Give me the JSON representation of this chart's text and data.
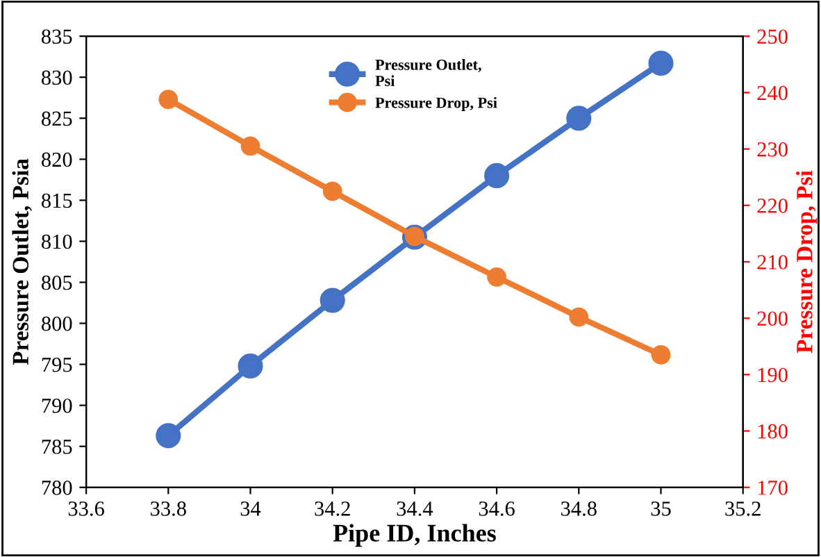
{
  "chart_data": {
    "type": "line",
    "xlabel": "Pipe ID, Inches",
    "ylabel": "Pressure Outlet, Psia",
    "y2label": "Pressure Drop, Psi",
    "x": [
      33.8,
      34,
      34.2,
      34.4,
      34.6,
      34.8,
      35
    ],
    "series": [
      {
        "name": "Pressure Outlet,\nPsi",
        "color": "#4472c4",
        "values": [
          786.3,
          794.8,
          802.8,
          810.5,
          818,
          825,
          831.7
        ]
      },
      {
        "name": "Pressure Drop, Psi",
        "color": "#ed7d31",
        "axis": "y2",
        "values": [
          238.8,
          230.5,
          222.5,
          214.5,
          207.3,
          200.2,
          193.5
        ]
      }
    ],
    "xlim": [
      33.6,
      35.2
    ],
    "xticks": [
      33.6,
      33.8,
      34,
      34.2,
      34.4,
      34.6,
      34.8,
      35,
      35.2
    ],
    "ylim": [
      780,
      835
    ],
    "yticks": [
      780,
      785,
      790,
      795,
      800,
      805,
      810,
      815,
      820,
      825,
      830,
      835
    ],
    "y2lim": [
      170,
      250
    ],
    "y2ticks": [
      170,
      180,
      190,
      200,
      210,
      220,
      230,
      240,
      250
    ],
    "marker": "circle",
    "line_style": "solid",
    "grid": false,
    "legend": "top"
  }
}
